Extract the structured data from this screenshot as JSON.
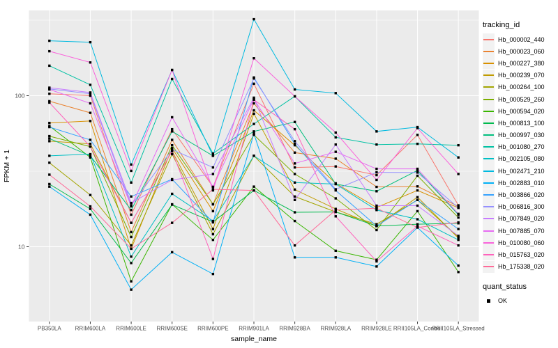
{
  "chart_data": {
    "type": "line",
    "title": "",
    "xlabel": "sample_name",
    "ylabel": "FPKM + 1",
    "y_scale": "log10",
    "ylim": [
      3.2,
      365
    ],
    "y_ticks": [
      {
        "value": 10,
        "label": "10"
      },
      {
        "value": 100,
        "label": "100"
      }
    ],
    "y_minor": [
      31.62,
      316.23
    ],
    "grid": true,
    "panel_bg": "#EBEBEB",
    "grid_color": "#FFFFFF",
    "tick_color": "#333333",
    "tick_label_color": "#4D4D4D",
    "marker": "black-square",
    "marker_color": "#000000",
    "legend_position": "right",
    "legend_title": "tracking_id",
    "legend2_title": "quant_status",
    "legend2_items": [
      {
        "label": "OK"
      }
    ],
    "categories": [
      "PB350LA",
      "RRIM600LA",
      "RRIM600LE",
      "RRIM600SE",
      "RRIM600PE",
      "RRIM901LA",
      "RRIM928BA",
      "RRIM928LA",
      "RRIM928LE",
      "RRII105LA_Control",
      "RRII105LA_Stressed"
    ],
    "series": [
      {
        "name": "Hb_000002_440",
        "color": "#F8766D",
        "values": [
          103,
          100,
          16.3,
          60,
          24.9,
          120,
          33.5,
          34,
          29.8,
          55,
          18.8
        ]
      },
      {
        "name": "Hb_000023_060",
        "color": "#EA8331",
        "values": [
          92,
          77,
          12.5,
          51,
          19.1,
          89,
          42,
          38.3,
          24.9,
          25.1,
          18.5
        ]
      },
      {
        "name": "Hb_000227_380",
        "color": "#D89000",
        "values": [
          66,
          68,
          9.7,
          45,
          17.2,
          80,
          47,
          26.3,
          18.2,
          23.6,
          18.1
        ]
      },
      {
        "name": "Hb_000239_070",
        "color": "#C09B00",
        "values": [
          50,
          48,
          14.4,
          43,
          13.1,
          76,
          23.9,
          17.8,
          13.7,
          21.3,
          11.4
        ]
      },
      {
        "name": "Hb_000264_100",
        "color": "#A3A500",
        "values": [
          36,
          22,
          10.2,
          41,
          12.1,
          40,
          21.5,
          17,
          14.1,
          20.4,
          11.6
        ]
      },
      {
        "name": "Hb_000529_260",
        "color": "#7CAE00",
        "values": [
          54,
          46,
          11.6,
          47,
          19.1,
          55,
          30.3,
          20.9,
          12.9,
          29.5,
          15.6
        ]
      },
      {
        "name": "Hb_000594_020",
        "color": "#39B600",
        "values": [
          63,
          39,
          5.9,
          19.1,
          11.1,
          25,
          14.8,
          9.4,
          8.2,
          17.2,
          6.8
        ]
      },
      {
        "name": "Hb_000813_100",
        "color": "#00BB4E",
        "values": [
          26,
          17.8,
          7.8,
          19,
          14.6,
          23.6,
          16.9,
          17,
          13.7,
          14.1,
          14.3
        ]
      },
      {
        "name": "Hb_000997_030",
        "color": "#00BF7D",
        "values": [
          52,
          40,
          17.5,
          58,
          40,
          58,
          67,
          26,
          23.3,
          32,
          16.3
        ]
      },
      {
        "name": "Hb_001080_270",
        "color": "#00C1A3",
        "values": [
          158,
          118,
          26.6,
          129,
          41.4,
          65,
          99,
          53,
          47.5,
          48,
          47
        ]
      },
      {
        "name": "Hb_002105_080",
        "color": "#00BFC4",
        "values": [
          40,
          41,
          8.6,
          22.4,
          14.8,
          40,
          26.6,
          26,
          17.5,
          15.2,
          11.1
        ]
      },
      {
        "name": "Hb_002471_210",
        "color": "#00BAE0",
        "values": [
          231,
          226,
          35,
          148,
          40,
          321,
          110,
          104,
          58,
          62,
          39
        ]
      },
      {
        "name": "Hb_002883_010",
        "color": "#00B0F6",
        "values": [
          25,
          16.3,
          5.2,
          9.2,
          6.6,
          56,
          8.5,
          8.5,
          7.4,
          13.4,
          7.5
        ]
      },
      {
        "name": "Hb_003866_020",
        "color": "#35A2FF",
        "values": [
          62,
          51,
          21.5,
          28,
          14.5,
          132,
          48,
          23.6,
          13.7,
          20.4,
          13.1
        ]
      },
      {
        "name": "Hb_006816_300",
        "color": "#9590FF",
        "values": [
          111,
          103,
          18.8,
          44,
          33.5,
          130,
          50,
          24,
          31.1,
          31,
          18.1
        ]
      },
      {
        "name": "Hb_007849_020",
        "color": "#C77CFF",
        "values": [
          113,
          105,
          19.5,
          27.7,
          30.3,
          97,
          20.4,
          47.5,
          18.7,
          18.7,
          11.8
        ]
      },
      {
        "name": "Hb_007885_070",
        "color": "#E76BF3",
        "values": [
          110,
          89,
          18.5,
          72,
          24.9,
          95,
          35.6,
          42.5,
          32.8,
          32.8,
          16.5
        ]
      },
      {
        "name": "Hb_010080_060",
        "color": "#FA62DB",
        "values": [
          197,
          166,
          31.8,
          148,
          23.6,
          177,
          99,
          57,
          27.7,
          61,
          30.3
        ]
      },
      {
        "name": "Hb_015763_020",
        "color": "#FF62BC",
        "values": [
          90,
          46,
          14.4,
          43,
          8.3,
          94,
          60,
          15.9,
          8.0,
          13.7,
          10.2
        ]
      },
      {
        "name": "Hb_175338_020",
        "color": "#FF6A98",
        "values": [
          30,
          18.5,
          9.7,
          14.4,
          24,
          23.6,
          10.2,
          17.5,
          18.0,
          13.4,
          14.5
        ]
      }
    ]
  }
}
